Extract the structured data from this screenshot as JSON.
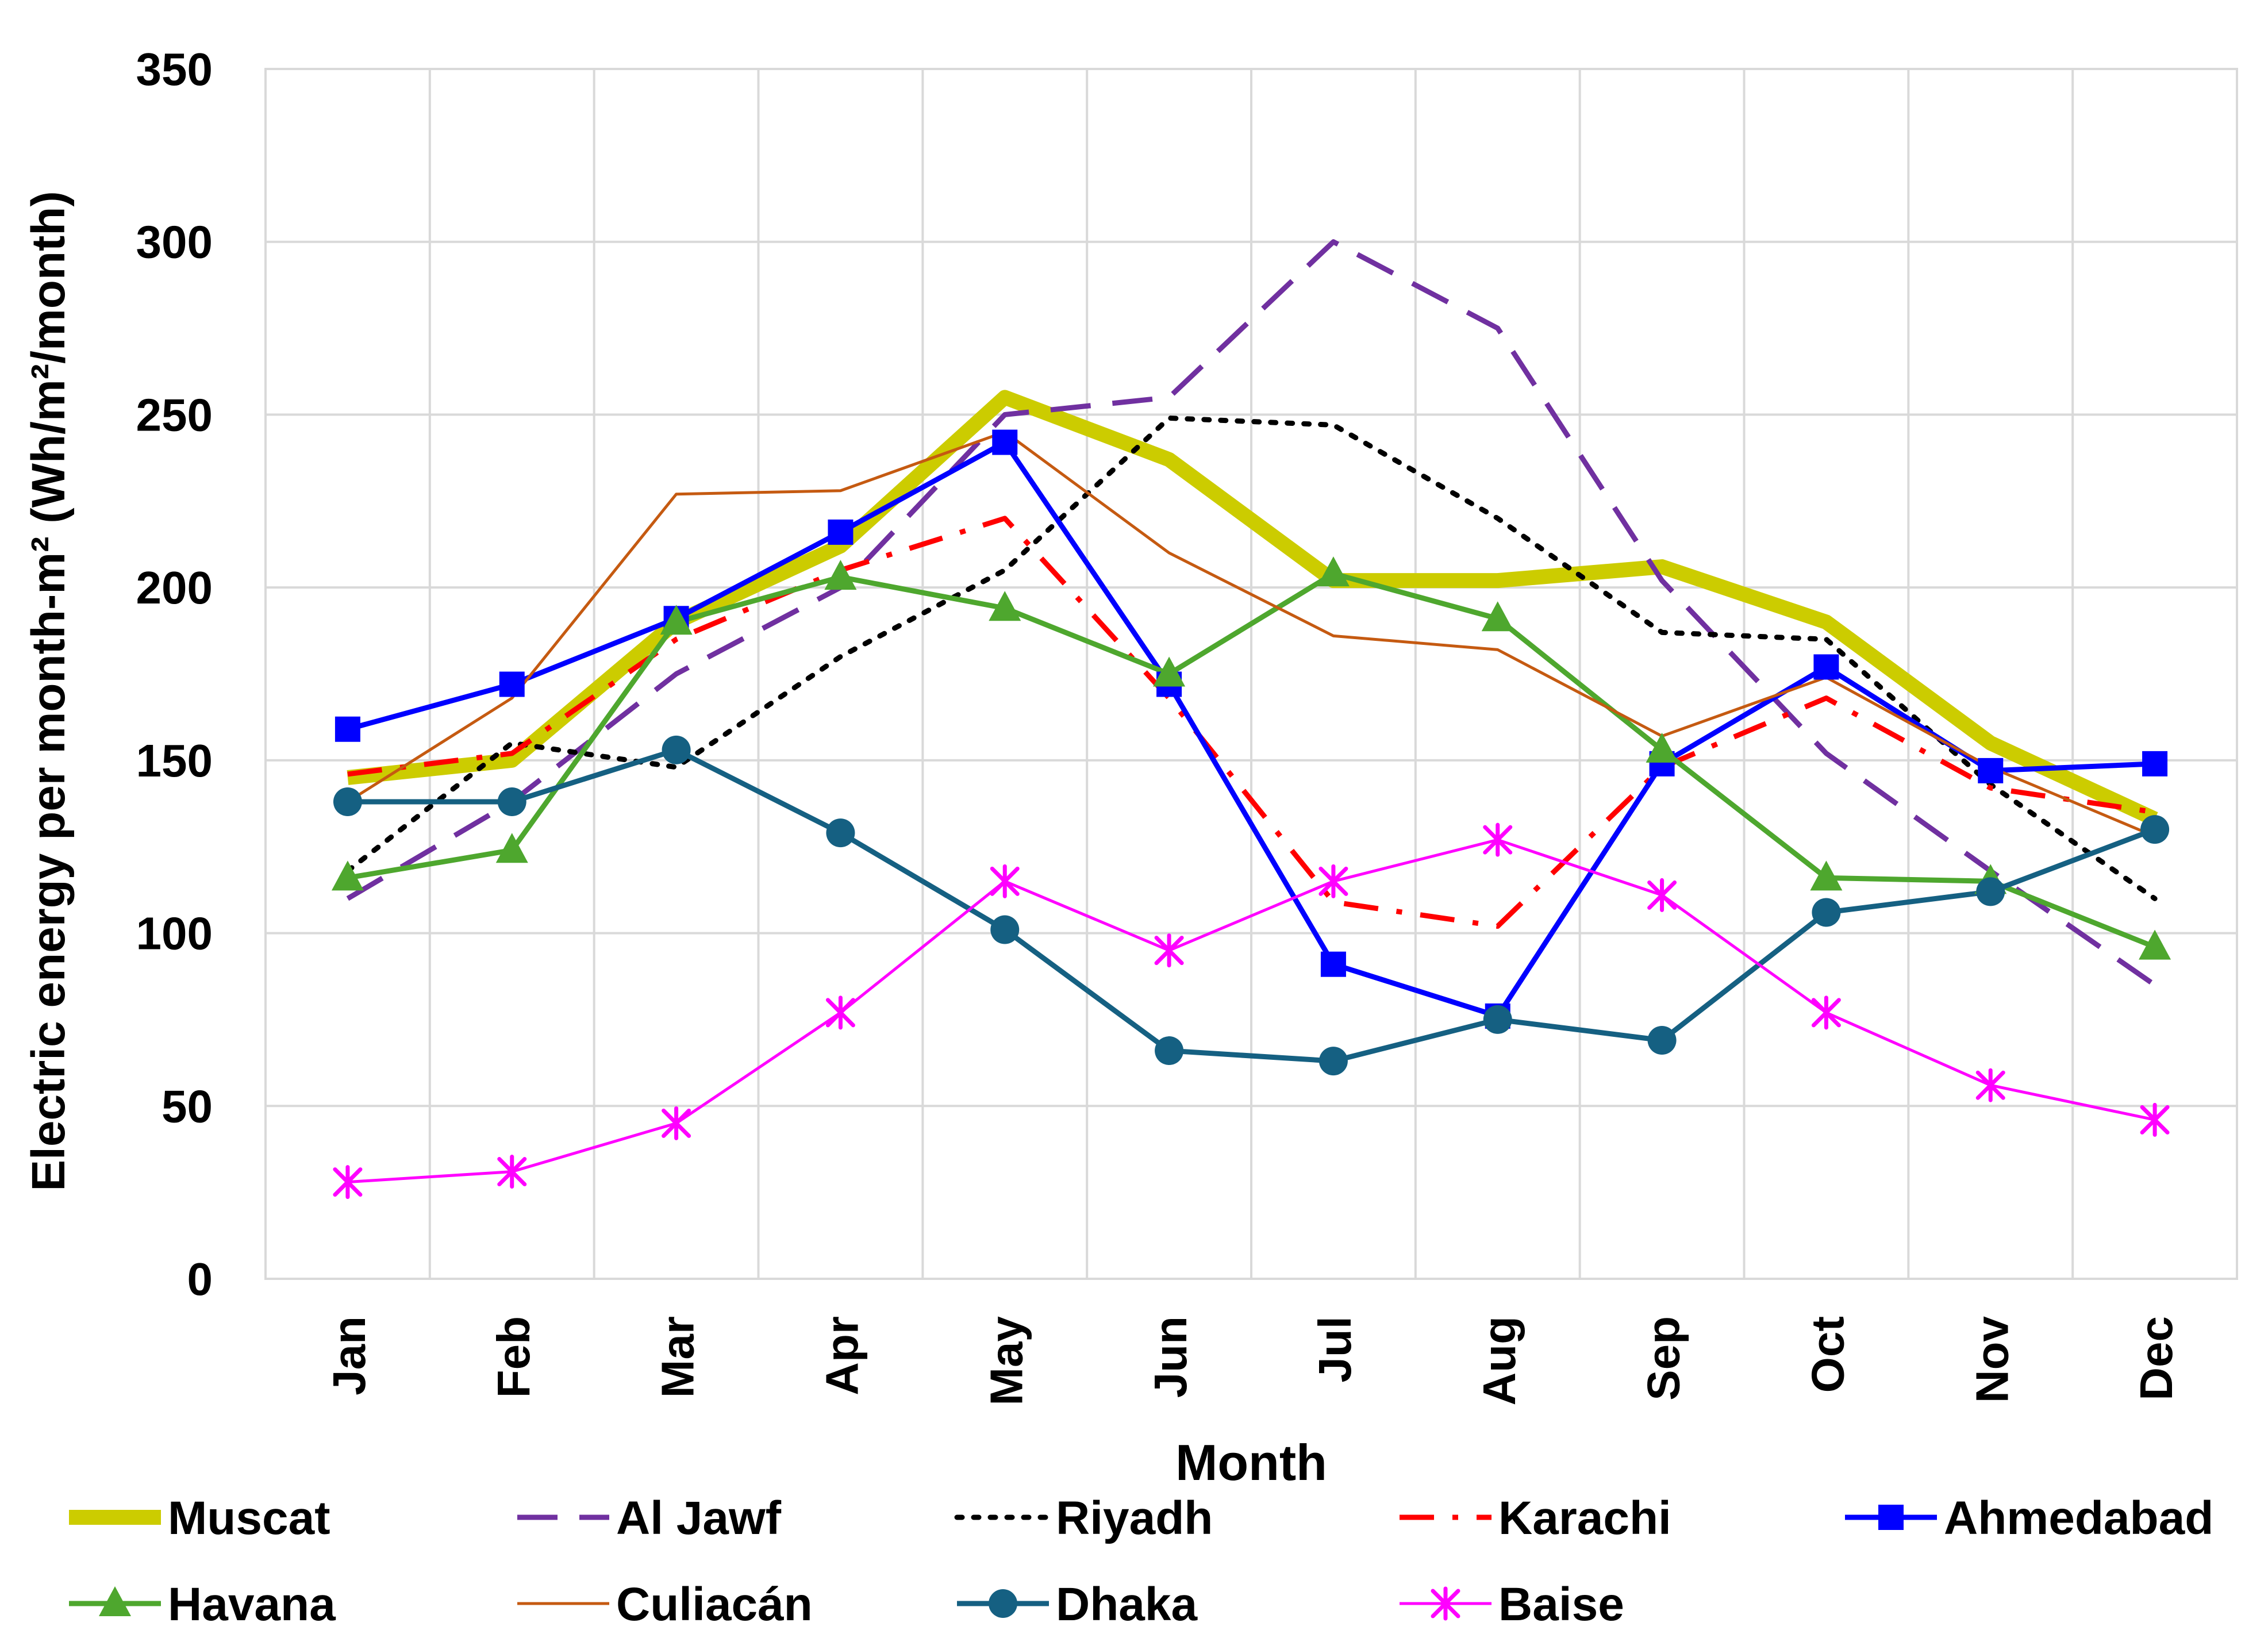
{
  "chart_data": {
    "type": "line",
    "title": "",
    "xlabel": "Month",
    "ylabel": "Electric energy per month-m² (Wh/m²/month)",
    "ylim": [
      0,
      350
    ],
    "yticks": [
      0,
      50,
      100,
      150,
      200,
      250,
      300,
      350
    ],
    "grid": true,
    "legend_position": "bottom",
    "categories": [
      "Jan",
      "Feb",
      "Mar",
      "Apr",
      "May",
      "Jun",
      "Jul",
      "Aug",
      "Sep",
      "Oct",
      "Nov",
      "Dec"
    ],
    "series": [
      {
        "name": "Muscat",
        "color": "#cccc00",
        "dash": "solid",
        "marker": "none",
        "weight": "thick",
        "values": [
          145,
          150,
          190,
          212,
          255,
          237,
          202,
          202,
          206,
          190,
          155,
          133
        ]
      },
      {
        "name": "Al Jawf",
        "color": "#7030a0",
        "dash": "dash",
        "marker": "none",
        "weight": "normal",
        "values": [
          110,
          138,
          175,
          200,
          250,
          255,
          300,
          275,
          202,
          152,
          118,
          85
        ]
      },
      {
        "name": "Riyadh",
        "color": "#000000",
        "dash": "dot",
        "marker": "none",
        "weight": "normal",
        "values": [
          118,
          155,
          148,
          180,
          205,
          249,
          247,
          220,
          187,
          185,
          143,
          110
        ]
      },
      {
        "name": "Karachi",
        "color": "#ff0000",
        "dash": "dashdot",
        "marker": "none",
        "weight": "normal",
        "values": [
          146,
          152,
          185,
          205,
          220,
          168,
          109,
          102,
          148,
          168,
          142,
          135
        ]
      },
      {
        "name": "Ahmedabad",
        "color": "#0000ff",
        "dash": "solid",
        "marker": "square",
        "weight": "normal",
        "values": [
          159,
          172,
          191,
          216,
          242,
          172,
          91,
          76,
          149,
          177,
          147,
          149
        ]
      },
      {
        "name": "Havana",
        "color": "#4ea72e",
        "dash": "solid",
        "marker": "triangle",
        "weight": "normal",
        "values": [
          116,
          124,
          190,
          203,
          194,
          175,
          204,
          191,
          153,
          116,
          115,
          96
        ]
      },
      {
        "name": "Culiacán",
        "color": "#c55a11",
        "dash": "solid",
        "marker": "none",
        "weight": "thin",
        "values": [
          138,
          168,
          227,
          228,
          245,
          210,
          186,
          182,
          157,
          174,
          148,
          128
        ]
      },
      {
        "name": "Dhaka",
        "color": "#156082",
        "dash": "solid",
        "marker": "circle",
        "weight": "normal",
        "values": [
          138,
          138,
          153,
          129,
          101,
          66,
          63,
          75,
          69,
          106,
          112,
          130
        ]
      },
      {
        "name": "Baise",
        "color": "#ff00ff",
        "dash": "solid",
        "marker": "star",
        "weight": "thin",
        "values": [
          28,
          31,
          45,
          77,
          115,
          95,
          115,
          127,
          111,
          77,
          56,
          46
        ]
      }
    ]
  }
}
